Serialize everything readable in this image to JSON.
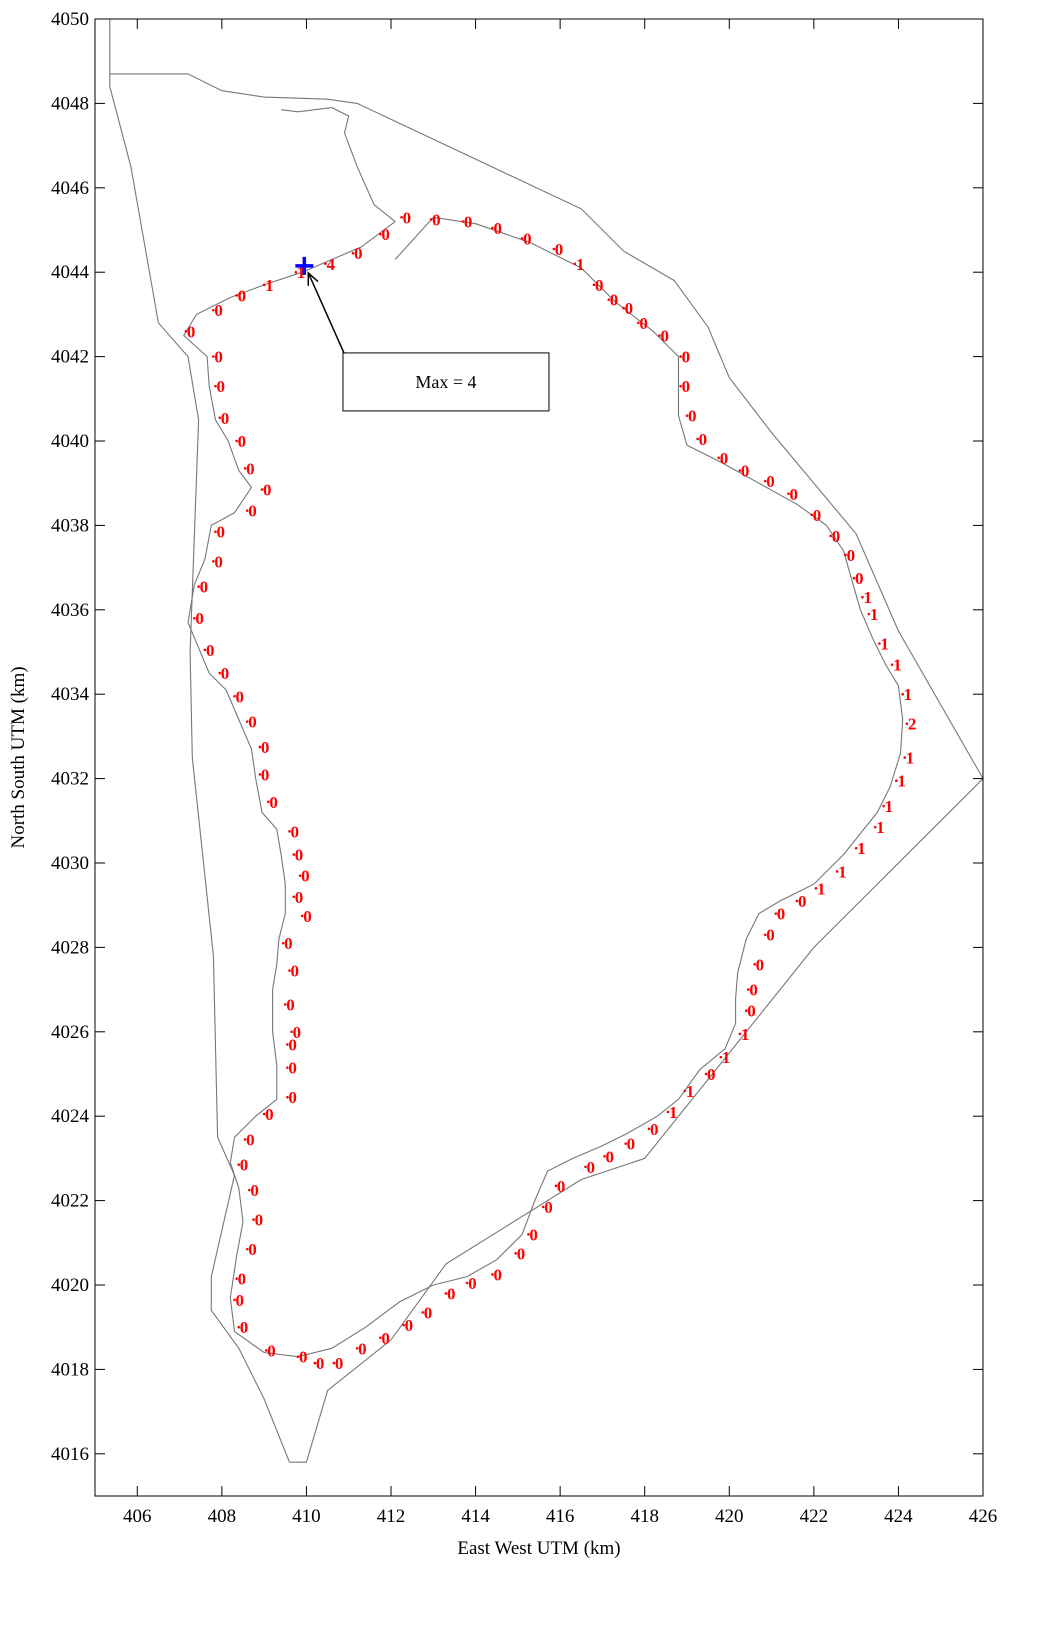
{
  "chart_data": {
    "type": "scatter",
    "xlabel": "East West UTM (km)",
    "ylabel": "North South UTM (km)",
    "xlim": [
      405,
      426
    ],
    "ylim": [
      4015,
      4050
    ],
    "xticks": [
      406,
      408,
      410,
      412,
      414,
      416,
      418,
      420,
      422,
      424,
      426
    ],
    "yticks": [
      4016,
      4018,
      4020,
      4022,
      4024,
      4026,
      4028,
      4030,
      4032,
      4034,
      4036,
      4038,
      4040,
      4042,
      4044,
      4046,
      4048,
      4050
    ],
    "colors": {
      "coastline": "#777777",
      "labels": "#ff0000",
      "max_marker": "#0000ff",
      "axis": "#000000"
    },
    "boundary": [
      [
        405.35,
        4050
      ],
      [
        405.35,
        4048.7
      ],
      [
        406.2,
        4048.7
      ],
      [
        407.2,
        4048.7
      ],
      [
        408.0,
        4048.3
      ],
      [
        409.0,
        4048.15
      ],
      [
        410.5,
        4048.1
      ],
      [
        411.2,
        4048.0
      ],
      [
        416.5,
        4045.5
      ],
      [
        417.5,
        4044.5
      ],
      [
        418.7,
        4043.8
      ],
      [
        419.5,
        4042.7
      ],
      [
        420.0,
        4041.5
      ],
      [
        421.0,
        4040.2
      ],
      [
        423.0,
        4037.8
      ],
      [
        424.0,
        4035.5
      ],
      [
        426.0,
        4032.0
      ],
      [
        422.0,
        4028.0
      ],
      [
        418.0,
        4023.0
      ],
      [
        416.5,
        4022.5
      ],
      [
        413.3,
        4020.5
      ],
      [
        412.0,
        4018.7
      ],
      [
        410.5,
        4017.5
      ],
      [
        410.0,
        4015.8
      ],
      [
        409.6,
        4015.8
      ],
      [
        409.0,
        4017.3
      ],
      [
        408.4,
        4018.5
      ],
      [
        407.75,
        4019.4
      ],
      [
        407.75,
        4020.2
      ],
      [
        408.3,
        4022.6
      ],
      [
        407.9,
        4023.5
      ],
      [
        407.8,
        4027.8
      ],
      [
        407.3,
        4032.5
      ],
      [
        407.25,
        4035.0
      ],
      [
        407.45,
        4040.5
      ],
      [
        407.2,
        4042.0
      ],
      [
        406.5,
        4042.8
      ],
      [
        405.85,
        4046.5
      ],
      [
        405.35,
        4048.4
      ]
    ],
    "coastline": [
      [
        412.1,
        4044.3
      ],
      [
        413.0,
        4045.3
      ],
      [
        414.0,
        4045.15
      ],
      [
        415.3,
        4044.7
      ],
      [
        416.5,
        4044.1
      ],
      [
        417.3,
        4043.3
      ],
      [
        418.2,
        4042.6
      ],
      [
        418.8,
        4042.0
      ],
      [
        418.8,
        4041.3
      ],
      [
        418.8,
        4040.6
      ],
      [
        419.0,
        4039.9
      ],
      [
        419.8,
        4039.5
      ],
      [
        420.7,
        4039.0
      ],
      [
        421.6,
        4038.5
      ],
      [
        422.3,
        4038.0
      ],
      [
        422.7,
        4037.4
      ],
      [
        422.9,
        4036.7
      ],
      [
        423.1,
        4036.0
      ],
      [
        423.4,
        4035.3
      ],
      [
        423.7,
        4034.7
      ],
      [
        424.0,
        4034.2
      ],
      [
        424.1,
        4033.4
      ],
      [
        424.05,
        4032.6
      ],
      [
        423.8,
        4031.8
      ],
      [
        423.5,
        4031.2
      ],
      [
        423.1,
        4030.7
      ],
      [
        422.7,
        4030.2
      ],
      [
        422.0,
        4029.5
      ],
      [
        421.2,
        4029.1
      ],
      [
        420.7,
        4028.8
      ],
      [
        420.4,
        4028.2
      ],
      [
        420.2,
        4027.4
      ],
      [
        420.15,
        4026.8
      ],
      [
        420.15,
        4026.2
      ],
      [
        419.9,
        4025.6
      ],
      [
        419.3,
        4025.1
      ],
      [
        418.8,
        4024.4
      ],
      [
        418.3,
        4024.0
      ],
      [
        417.6,
        4023.6
      ],
      [
        417.0,
        4023.3
      ],
      [
        416.3,
        4023.0
      ],
      [
        415.7,
        4022.7
      ],
      [
        415.4,
        4022.0
      ],
      [
        415.1,
        4021.2
      ],
      [
        414.5,
        4020.6
      ],
      [
        413.8,
        4020.2
      ],
      [
        413.0,
        4020.0
      ],
      [
        412.2,
        4019.6
      ],
      [
        411.4,
        4019.0
      ],
      [
        410.6,
        4018.5
      ],
      [
        409.8,
        4018.3
      ],
      [
        409.0,
        4018.4
      ],
      [
        408.3,
        4018.9
      ],
      [
        408.2,
        4019.7
      ],
      [
        408.35,
        4020.7
      ],
      [
        408.5,
        4021.5
      ],
      [
        408.4,
        4022.3
      ],
      [
        408.2,
        4022.9
      ],
      [
        408.3,
        4023.5
      ],
      [
        408.8,
        4024.0
      ],
      [
        409.3,
        4024.4
      ],
      [
        409.3,
        4025.2
      ],
      [
        409.2,
        4026.0
      ],
      [
        409.2,
        4027.0
      ],
      [
        409.3,
        4027.6
      ],
      [
        409.35,
        4028.2
      ],
      [
        409.5,
        4028.8
      ],
      [
        409.5,
        4029.5
      ],
      [
        409.4,
        4030.2
      ],
      [
        409.3,
        4030.8
      ],
      [
        408.95,
        4031.2
      ],
      [
        408.8,
        4032.0
      ],
      [
        408.7,
        4032.7
      ],
      [
        408.4,
        4033.4
      ],
      [
        408.1,
        4034.1
      ],
      [
        407.7,
        4034.5
      ],
      [
        407.45,
        4035.1
      ],
      [
        407.2,
        4035.7
      ],
      [
        407.35,
        4036.6
      ],
      [
        407.6,
        4037.2
      ],
      [
        407.75,
        4038.0
      ],
      [
        408.3,
        4038.3
      ],
      [
        408.7,
        4038.9
      ],
      [
        408.4,
        4039.3
      ],
      [
        408.15,
        4040.0
      ],
      [
        407.85,
        4040.5
      ],
      [
        407.7,
        4041.3
      ],
      [
        407.65,
        4042.0
      ],
      [
        407.1,
        4042.5
      ],
      [
        407.4,
        4043.0
      ],
      [
        408.2,
        4043.4
      ],
      [
        409.0,
        4043.7
      ],
      [
        409.9,
        4044.0
      ],
      [
        410.6,
        4044.3
      ],
      [
        411.3,
        4044.6
      ],
      [
        412.1,
        4045.2
      ]
    ],
    "inlet": [
      [
        412.1,
        4045.2
      ],
      [
        411.6,
        4045.6
      ],
      [
        411.2,
        4046.5
      ],
      [
        410.9,
        4047.3
      ],
      [
        411.0,
        4047.7
      ],
      [
        410.6,
        4047.9
      ],
      [
        409.8,
        4047.8
      ],
      [
        409.4,
        4047.85
      ]
    ],
    "points": [
      {
        "x": 412.25,
        "y": 4045.3,
        "label": "0"
      },
      {
        "x": 412.95,
        "y": 4045.25,
        "label": "0"
      },
      {
        "x": 413.7,
        "y": 4045.2,
        "label": "0"
      },
      {
        "x": 414.4,
        "y": 4045.05,
        "label": "0"
      },
      {
        "x": 415.1,
        "y": 4044.8,
        "label": "0"
      },
      {
        "x": 415.85,
        "y": 4044.55,
        "label": "0"
      },
      {
        "x": 416.35,
        "y": 4044.2,
        "label": "1"
      },
      {
        "x": 416.8,
        "y": 4043.7,
        "label": "0"
      },
      {
        "x": 417.15,
        "y": 4043.35,
        "label": "0"
      },
      {
        "x": 417.5,
        "y": 4043.15,
        "label": "0"
      },
      {
        "x": 417.85,
        "y": 4042.8,
        "label": "0"
      },
      {
        "x": 418.35,
        "y": 4042.5,
        "label": "0"
      },
      {
        "x": 418.85,
        "y": 4042.0,
        "label": "0"
      },
      {
        "x": 418.85,
        "y": 4041.3,
        "label": "0"
      },
      {
        "x": 419.0,
        "y": 4040.6,
        "label": "0"
      },
      {
        "x": 419.25,
        "y": 4040.05,
        "label": "0"
      },
      {
        "x": 419.75,
        "y": 4039.6,
        "label": "0"
      },
      {
        "x": 420.25,
        "y": 4039.3,
        "label": "0"
      },
      {
        "x": 420.85,
        "y": 4039.05,
        "label": "0"
      },
      {
        "x": 421.4,
        "y": 4038.75,
        "label": "0"
      },
      {
        "x": 421.95,
        "y": 4038.25,
        "label": "0"
      },
      {
        "x": 422.4,
        "y": 4037.75,
        "label": "0"
      },
      {
        "x": 422.75,
        "y": 4037.3,
        "label": "0"
      },
      {
        "x": 422.95,
        "y": 4036.75,
        "label": "0"
      },
      {
        "x": 423.15,
        "y": 4036.3,
        "label": "1"
      },
      {
        "x": 423.3,
        "y": 4035.9,
        "label": "1"
      },
      {
        "x": 423.55,
        "y": 4035.2,
        "label": "1"
      },
      {
        "x": 423.85,
        "y": 4034.7,
        "label": "1"
      },
      {
        "x": 424.1,
        "y": 4034.0,
        "label": "1"
      },
      {
        "x": 424.2,
        "y": 4033.3,
        "label": "2"
      },
      {
        "x": 424.15,
        "y": 4032.5,
        "label": "1"
      },
      {
        "x": 423.95,
        "y": 4031.95,
        "label": "1"
      },
      {
        "x": 423.65,
        "y": 4031.35,
        "label": "1"
      },
      {
        "x": 423.45,
        "y": 4030.85,
        "label": "1"
      },
      {
        "x": 423.0,
        "y": 4030.35,
        "label": "1"
      },
      {
        "x": 422.55,
        "y": 4029.8,
        "label": "1"
      },
      {
        "x": 422.05,
        "y": 4029.4,
        "label": "1"
      },
      {
        "x": 421.6,
        "y": 4029.1,
        "label": "0"
      },
      {
        "x": 421.1,
        "y": 4028.8,
        "label": "0"
      },
      {
        "x": 420.85,
        "y": 4028.3,
        "label": "0"
      },
      {
        "x": 420.6,
        "y": 4027.6,
        "label": "0"
      },
      {
        "x": 420.45,
        "y": 4027.0,
        "label": "0"
      },
      {
        "x": 420.4,
        "y": 4026.5,
        "label": "0"
      },
      {
        "x": 420.25,
        "y": 4025.95,
        "label": "1"
      },
      {
        "x": 419.8,
        "y": 4025.4,
        "label": "1"
      },
      {
        "x": 419.45,
        "y": 4025.0,
        "label": "0"
      },
      {
        "x": 418.95,
        "y": 4024.6,
        "label": "1"
      },
      {
        "x": 418.55,
        "y": 4024.1,
        "label": "1"
      },
      {
        "x": 418.1,
        "y": 4023.7,
        "label": "0"
      },
      {
        "x": 417.55,
        "y": 4023.35,
        "label": "0"
      },
      {
        "x": 417.05,
        "y": 4023.05,
        "label": "0"
      },
      {
        "x": 416.6,
        "y": 4022.8,
        "label": "0"
      },
      {
        "x": 415.9,
        "y": 4022.35,
        "label": "0"
      },
      {
        "x": 415.6,
        "y": 4021.85,
        "label": "0"
      },
      {
        "x": 415.25,
        "y": 4021.2,
        "label": "0"
      },
      {
        "x": 414.95,
        "y": 4020.75,
        "label": "0"
      },
      {
        "x": 414.4,
        "y": 4020.25,
        "label": "0"
      },
      {
        "x": 413.8,
        "y": 4020.05,
        "label": "0"
      },
      {
        "x": 413.3,
        "y": 4019.8,
        "label": "0"
      },
      {
        "x": 412.75,
        "y": 4019.35,
        "label": "0"
      },
      {
        "x": 412.3,
        "y": 4019.05,
        "label": "0"
      },
      {
        "x": 411.75,
        "y": 4018.75,
        "label": "0"
      },
      {
        "x": 411.2,
        "y": 4018.5,
        "label": "0"
      },
      {
        "x": 410.65,
        "y": 4018.15,
        "label": "0"
      },
      {
        "x": 410.2,
        "y": 4018.15,
        "label": "0"
      },
      {
        "x": 409.8,
        "y": 4018.3,
        "label": "0"
      },
      {
        "x": 409.05,
        "y": 4018.45,
        "label": "0"
      },
      {
        "x": 408.4,
        "y": 4019.0,
        "label": "0"
      },
      {
        "x": 408.3,
        "y": 4019.65,
        "label": "0"
      },
      {
        "x": 408.35,
        "y": 4020.15,
        "label": "0"
      },
      {
        "x": 408.6,
        "y": 4020.85,
        "label": "0"
      },
      {
        "x": 408.75,
        "y": 4021.55,
        "label": "0"
      },
      {
        "x": 408.65,
        "y": 4022.25,
        "label": "0"
      },
      {
        "x": 408.4,
        "y": 4022.85,
        "label": "0"
      },
      {
        "x": 408.55,
        "y": 4023.45,
        "label": "0"
      },
      {
        "x": 409.0,
        "y": 4024.05,
        "label": "0"
      },
      {
        "x": 409.55,
        "y": 4024.45,
        "label": "0"
      },
      {
        "x": 409.55,
        "y": 4025.15,
        "label": "0"
      },
      {
        "x": 409.55,
        "y": 4025.7,
        "label": "0"
      },
      {
        "x": 409.65,
        "y": 4026.0,
        "label": "0"
      },
      {
        "x": 409.5,
        "y": 4026.65,
        "label": "0"
      },
      {
        "x": 409.6,
        "y": 4027.45,
        "label": "0"
      },
      {
        "x": 409.45,
        "y": 4028.1,
        "label": "0"
      },
      {
        "x": 409.9,
        "y": 4028.75,
        "label": "0"
      },
      {
        "x": 409.85,
        "y": 4029.7,
        "label": "0"
      },
      {
        "x": 409.7,
        "y": 4029.2,
        "label": "0"
      },
      {
        "x": 409.7,
        "y": 4030.2,
        "label": "0"
      },
      {
        "x": 409.6,
        "y": 4030.75,
        "label": "0"
      },
      {
        "x": 409.1,
        "y": 4031.45,
        "label": "0"
      },
      {
        "x": 408.9,
        "y": 4032.1,
        "label": "0"
      },
      {
        "x": 408.9,
        "y": 4032.75,
        "label": "0"
      },
      {
        "x": 408.6,
        "y": 4033.35,
        "label": "0"
      },
      {
        "x": 408.3,
        "y": 4033.95,
        "label": "0"
      },
      {
        "x": 407.95,
        "y": 4034.5,
        "label": "0"
      },
      {
        "x": 407.6,
        "y": 4035.05,
        "label": "0"
      },
      {
        "x": 407.35,
        "y": 4035.8,
        "label": "0"
      },
      {
        "x": 407.45,
        "y": 4036.55,
        "label": "0"
      },
      {
        "x": 407.8,
        "y": 4037.15,
        "label": "0"
      },
      {
        "x": 407.85,
        "y": 4037.85,
        "label": "0"
      },
      {
        "x": 408.6,
        "y": 4038.35,
        "label": "0"
      },
      {
        "x": 408.95,
        "y": 4038.85,
        "label": "0"
      },
      {
        "x": 408.55,
        "y": 4039.35,
        "label": "0"
      },
      {
        "x": 408.35,
        "y": 4040.0,
        "label": "0"
      },
      {
        "x": 407.95,
        "y": 4040.55,
        "label": "0"
      },
      {
        "x": 407.85,
        "y": 4041.3,
        "label": "0"
      },
      {
        "x": 407.8,
        "y": 4042.0,
        "label": "0"
      },
      {
        "x": 407.15,
        "y": 4042.6,
        "label": "0"
      },
      {
        "x": 407.8,
        "y": 4043.1,
        "label": "0"
      },
      {
        "x": 408.35,
        "y": 4043.45,
        "label": "0"
      },
      {
        "x": 409.0,
        "y": 4043.7,
        "label": "1"
      },
      {
        "x": 409.75,
        "y": 4044.0,
        "label": "1"
      },
      {
        "x": 410.45,
        "y": 4044.2,
        "label": "4"
      },
      {
        "x": 411.1,
        "y": 4044.45,
        "label": "0"
      },
      {
        "x": 411.75,
        "y": 4044.9,
        "label": "0"
      }
    ],
    "max_marker": {
      "x": 409.95,
      "y": 4044.15
    },
    "annotation": {
      "text": "Max = 4",
      "box_center": [
        413.3,
        4041.4
      ]
    }
  }
}
